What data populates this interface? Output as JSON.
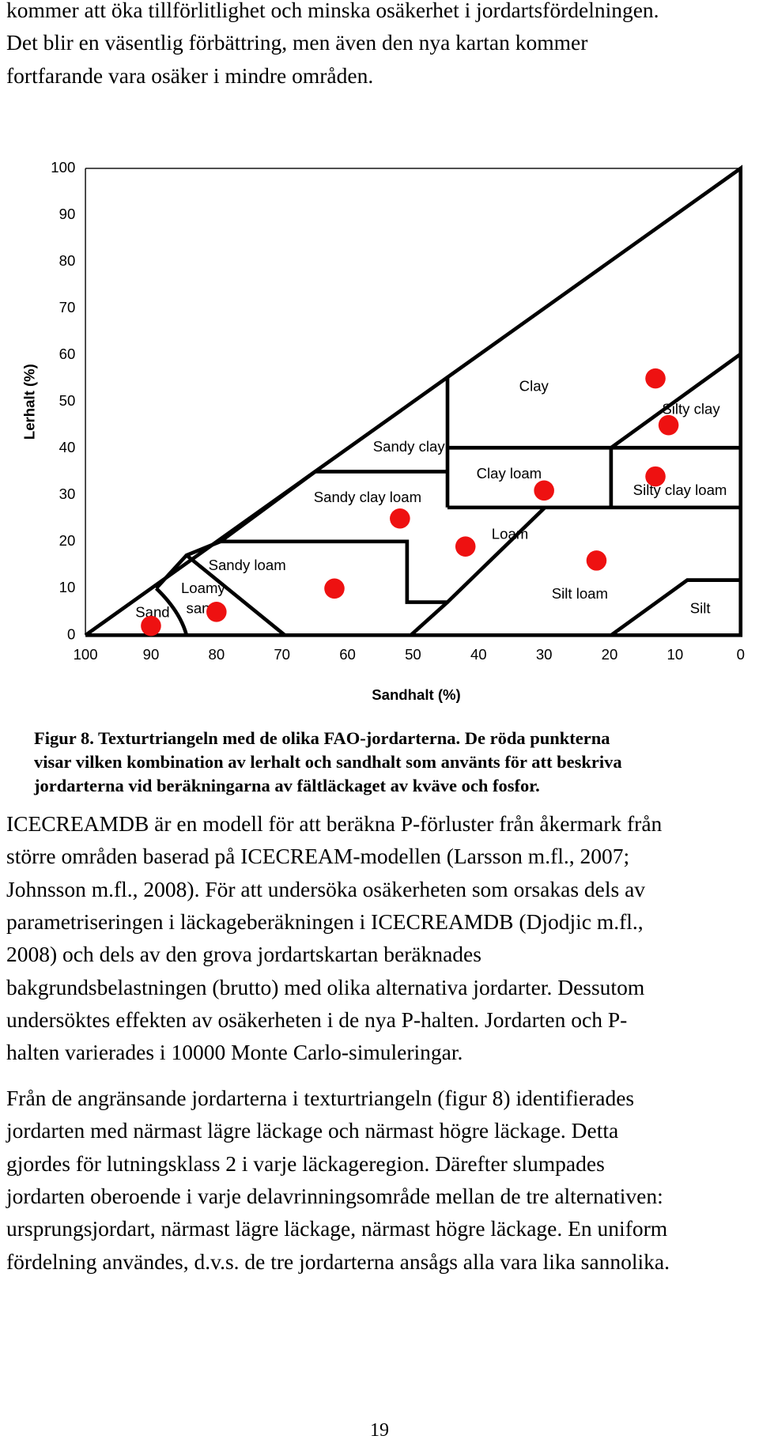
{
  "intro_lines": [
    "kommer att öka tillförlitlighet och minska osäkerhet i jordartsfördelningen.",
    "Det blir en väsentlig förbättring, men även den nya kartan kommer",
    "fortfarande vara osäker i mindre områden."
  ],
  "chart_data": {
    "type": "scatter",
    "x_label": "Sandhalt (%)",
    "y_label": "Lerhalt (%)",
    "xlim": [
      100,
      0
    ],
    "ylim": [
      0,
      100
    ],
    "xticks": [
      100,
      90,
      80,
      70,
      60,
      50,
      40,
      30,
      20,
      10,
      0
    ],
    "yticks": [
      0,
      10,
      20,
      30,
      40,
      50,
      60,
      70,
      80,
      90,
      100
    ],
    "x": [
      90,
      80,
      62,
      52,
      42,
      30,
      22,
      13,
      11,
      13
    ],
    "y": [
      2,
      5,
      10,
      25,
      19,
      31,
      16,
      55,
      45,
      34
    ],
    "color": "#ee1111",
    "region_labels": [
      "Clay",
      "Silty clay",
      "Sandy clay",
      "Clay loam",
      "Silty clay loam",
      "Sandy clay loam",
      "Loam",
      "Sandy loam",
      [
        "Loamy",
        "sand"
      ],
      "Sand",
      "Silt loam",
      "Silt"
    ]
  },
  "caption_lines": [
    "Figur 8. Texturtriangeln med de olika FAO-jordarterna. De röda punkterna",
    "visar vilken kombination av lerhalt och sandhalt som använts för att beskriva",
    "jordarterna vid beräkningarna av fältläckaget av kväve och fosfor."
  ],
  "paragraphs": [
    [
      "ICECREAMDB är en modell för att beräkna P-förluster från åkermark från",
      "större områden baserad på ICECREAM-modellen (Larsson m.fl., 2007;",
      "Johnsson m.fl., 2008). För att undersöka osäkerheten som orsakas dels av",
      "parametriseringen i läckageberäkningen i ICECREAMDB (Djodjic m.fl.,",
      "2008) och dels av den grova jordartskartan beräknades",
      "bakgrundsbelastningen (brutto) med olika alternativa jordarter. Dessutom",
      "undersöktes effekten av osäkerheten i de nya P-halten. Jordarten och P-",
      "halten varierades i 10000 Monte Carlo-simuleringar."
    ],
    [
      "Från de angränsande jordarterna i texturtriangeln (figur 8) identifierades",
      "jordarten med närmast lägre läckage och närmast högre läckage. Detta",
      "gjordes för lutningsklass 2 i varje läckageregion. Därefter slumpades",
      "jordarten oberoende i varje delavrinningsområde mellan de tre alternativen:",
      "ursprungsjordart, närmast lägre läckage, närmast högre läckage. En uniform",
      "fördelning användes, d.v.s. de tre jordarterna ansågs alla vara lika sannolika."
    ]
  ],
  "page_number": "19"
}
